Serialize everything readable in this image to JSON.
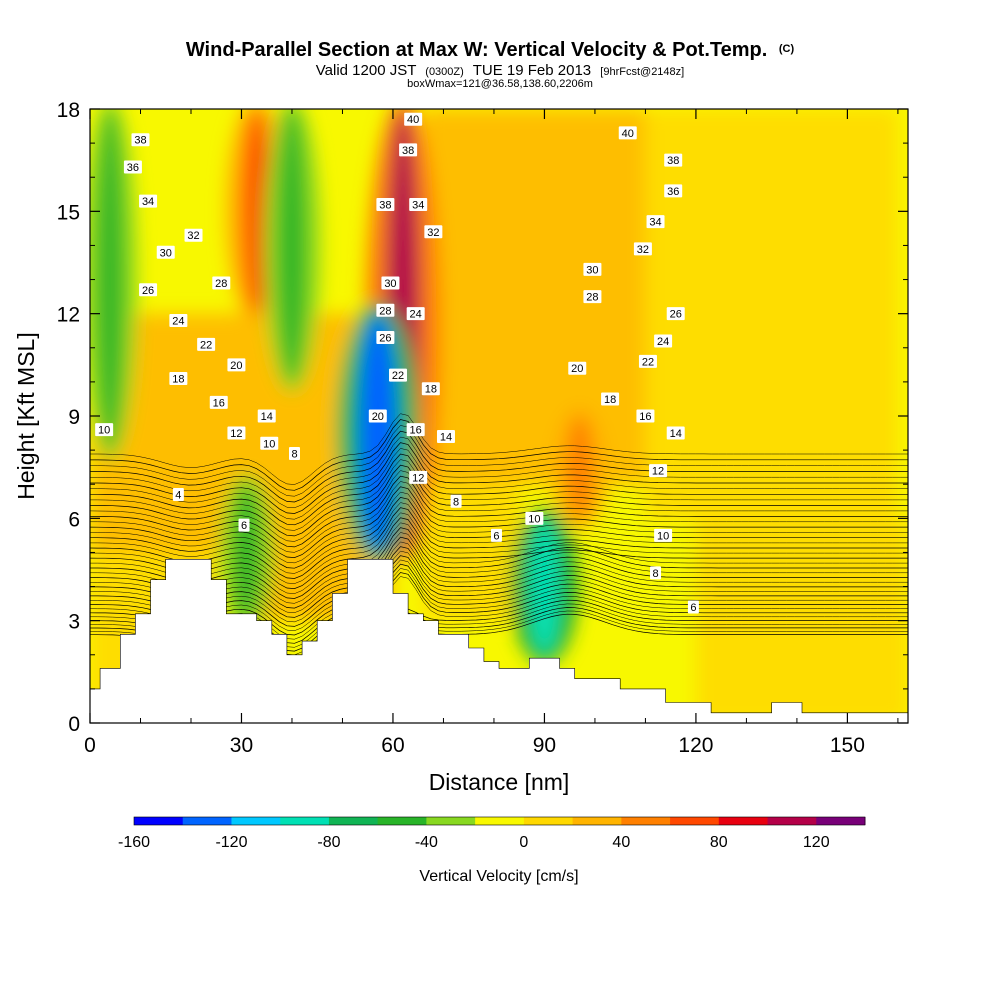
{
  "title": {
    "main": "Wind-Parallel Section at Max W: Vertical Velocity & Pot.Temp.",
    "mark": "(C)",
    "line2_a": "Valid 1200 JST",
    "line2_b": "(0300Z)",
    "line2_c": "TUE 19 Feb 2013",
    "line2_d": "[9hrFcst@2148z]",
    "line3": "boxWmax=121@36.58,138.60,2206m"
  },
  "chart_data": {
    "type": "heatmap",
    "xlabel": "Distance [nm]",
    "ylabel": "Height [Kft MSL]",
    "xlim": [
      0,
      162
    ],
    "ylim": [
      0,
      18
    ],
    "x_ticks": [
      0,
      30,
      60,
      90,
      120,
      150
    ],
    "y_ticks": [
      0,
      3,
      6,
      9,
      12,
      15,
      18
    ],
    "colorbar": {
      "label": "Vertical Velocity [cm/s]",
      "bounds": [
        -160,
        140
      ],
      "tick_values": [
        -160,
        -120,
        -80,
        -40,
        0,
        40,
        80,
        120
      ],
      "colors": [
        "#0000ff",
        "#0064ff",
        "#00c8ff",
        "#00e0b4",
        "#10b454",
        "#28b428",
        "#88d820",
        "#f8f800",
        "#ffd800",
        "#ffb400",
        "#ff8000",
        "#ff4800",
        "#e80010",
        "#b40048",
        "#780078"
      ]
    },
    "velocity_features": [
      {
        "x": 62,
        "z_bottom": 5,
        "z_top": 18,
        "w": 110
      },
      {
        "x": 33,
        "z_bottom": 12,
        "z_top": 18,
        "w": 70
      },
      {
        "x": 57,
        "z_bottom": 5,
        "z_top": 12,
        "w": -130
      },
      {
        "x": 90,
        "z_bottom": 2,
        "z_top": 6,
        "w": -90
      },
      {
        "x": 40,
        "z_bottom": 10,
        "z_top": 18,
        "w": -55
      },
      {
        "x": 4,
        "z_bottom": 8,
        "z_top": 18,
        "w": -45
      },
      {
        "x": 31,
        "z_bottom": 3,
        "z_top": 7,
        "w": -45
      },
      {
        "x": 97,
        "z_bottom": 6,
        "z_top": 9,
        "w": 55
      }
    ],
    "terrain_kft": [
      [
        0,
        1.0
      ],
      [
        2,
        1.0
      ],
      [
        2,
        1.6
      ],
      [
        6,
        1.6
      ],
      [
        6,
        2.6
      ],
      [
        9,
        2.6
      ],
      [
        9,
        3.2
      ],
      [
        12,
        3.2
      ],
      [
        12,
        4.2
      ],
      [
        15,
        4.2
      ],
      [
        15,
        4.8
      ],
      [
        24,
        4.8
      ],
      [
        24,
        4.2
      ],
      [
        27,
        4.2
      ],
      [
        27,
        3.2
      ],
      [
        33,
        3.2
      ],
      [
        33,
        3.0
      ],
      [
        36,
        3.0
      ],
      [
        36,
        2.6
      ],
      [
        39,
        2.6
      ],
      [
        39,
        2.0
      ],
      [
        42,
        2.0
      ],
      [
        42,
        2.4
      ],
      [
        45,
        2.4
      ],
      [
        45,
        3.0
      ],
      [
        48,
        3.0
      ],
      [
        48,
        3.8
      ],
      [
        51,
        3.8
      ],
      [
        51,
        4.8
      ],
      [
        60,
        4.8
      ],
      [
        60,
        3.8
      ],
      [
        63,
        3.8
      ],
      [
        63,
        3.2
      ],
      [
        66,
        3.2
      ],
      [
        66,
        3.0
      ],
      [
        69,
        3.0
      ],
      [
        69,
        2.6
      ],
      [
        75,
        2.6
      ],
      [
        75,
        2.2
      ],
      [
        78,
        2.2
      ],
      [
        78,
        1.8
      ],
      [
        81,
        1.8
      ],
      [
        81,
        1.6
      ],
      [
        87,
        1.6
      ],
      [
        87,
        1.9
      ],
      [
        93,
        1.9
      ],
      [
        93,
        1.6
      ],
      [
        96,
        1.6
      ],
      [
        96,
        1.3
      ],
      [
        105,
        1.3
      ],
      [
        105,
        1.0
      ],
      [
        114,
        1.0
      ],
      [
        114,
        0.6
      ],
      [
        123,
        0.6
      ],
      [
        123,
        0.3
      ],
      [
        135,
        0.3
      ],
      [
        135,
        0.6
      ],
      [
        141,
        0.6
      ],
      [
        141,
        0.3
      ],
      [
        162,
        0.3
      ]
    ],
    "theta_contours": [
      {
        "label": "4",
        "theta": 4
      },
      {
        "label": "6",
        "theta": 6
      },
      {
        "label": "8",
        "theta": 8
      },
      {
        "label": "10",
        "theta": 10
      },
      {
        "label": "12",
        "theta": 12
      },
      {
        "label": "14",
        "theta": 14
      },
      {
        "label": "16",
        "theta": 16
      },
      {
        "label": "18",
        "theta": 18
      },
      {
        "label": "20",
        "theta": 20
      },
      {
        "label": "22",
        "theta": 22
      },
      {
        "label": "24",
        "theta": 24
      },
      {
        "label": "26",
        "theta": 26
      },
      {
        "label": "28",
        "theta": 28
      },
      {
        "label": "30",
        "theta": 30
      },
      {
        "label": "32",
        "theta": 32
      },
      {
        "label": "34",
        "theta": 34
      },
      {
        "label": "36",
        "theta": 36
      },
      {
        "label": "38",
        "theta": 38
      },
      {
        "label": "40",
        "theta": 40
      }
    ],
    "contour_labels": [
      {
        "t": "38",
        "x": 10,
        "z": 17.1
      },
      {
        "t": "36",
        "x": 8.5,
        "z": 16.3
      },
      {
        "t": "34",
        "x": 11.5,
        "z": 15.3
      },
      {
        "t": "32",
        "x": 20.5,
        "z": 14.3
      },
      {
        "t": "30",
        "x": 15,
        "z": 13.8
      },
      {
        "t": "28",
        "x": 26,
        "z": 12.9
      },
      {
        "t": "26",
        "x": 11.5,
        "z": 12.7
      },
      {
        "t": "24",
        "x": 17.5,
        "z": 11.8
      },
      {
        "t": "22",
        "x": 23,
        "z": 11.1
      },
      {
        "t": "20",
        "x": 29,
        "z": 10.5
      },
      {
        "t": "18",
        "x": 17.5,
        "z": 10.1
      },
      {
        "t": "16",
        "x": 25.5,
        "z": 9.4
      },
      {
        "t": "14",
        "x": 35,
        "z": 9.0
      },
      {
        "t": "12",
        "x": 29,
        "z": 8.5
      },
      {
        "t": "10",
        "x": 2.8,
        "z": 8.6
      },
      {
        "t": "10",
        "x": 35.5,
        "z": 8.2
      },
      {
        "t": "8",
        "x": 40.5,
        "z": 7.9
      },
      {
        "t": "6",
        "x": 30.5,
        "z": 5.8
      },
      {
        "t": "4",
        "x": 17.5,
        "z": 6.7
      },
      {
        "t": "40",
        "x": 64,
        "z": 17.7
      },
      {
        "t": "38",
        "x": 63,
        "z": 16.8
      },
      {
        "t": "38",
        "x": 58.5,
        "z": 15.2
      },
      {
        "t": "34",
        "x": 65,
        "z": 15.2
      },
      {
        "t": "32",
        "x": 68,
        "z": 14.4
      },
      {
        "t": "30",
        "x": 59.5,
        "z": 12.9
      },
      {
        "t": "28",
        "x": 58.5,
        "z": 12.1
      },
      {
        "t": "24",
        "x": 64.5,
        "z": 12.0
      },
      {
        "t": "26",
        "x": 58.5,
        "z": 11.3
      },
      {
        "t": "22",
        "x": 61,
        "z": 10.2
      },
      {
        "t": "18",
        "x": 67.5,
        "z": 9.8
      },
      {
        "t": "20",
        "x": 57,
        "z": 9.0
      },
      {
        "t": "16",
        "x": 64.5,
        "z": 8.6
      },
      {
        "t": "14",
        "x": 70.5,
        "z": 8.4
      },
      {
        "t": "12",
        "x": 65,
        "z": 7.2
      },
      {
        "t": "8",
        "x": 72.5,
        "z": 6.5
      },
      {
        "t": "6",
        "x": 80.5,
        "z": 5.5
      },
      {
        "t": "10",
        "x": 88,
        "z": 6.0
      },
      {
        "t": "40",
        "x": 106.5,
        "z": 17.3
      },
      {
        "t": "38",
        "x": 115.5,
        "z": 16.5
      },
      {
        "t": "36",
        "x": 115.5,
        "z": 15.6
      },
      {
        "t": "34",
        "x": 112,
        "z": 14.7
      },
      {
        "t": "32",
        "x": 109.5,
        "z": 13.9
      },
      {
        "t": "30",
        "x": 99.5,
        "z": 13.3
      },
      {
        "t": "28",
        "x": 99.5,
        "z": 12.5
      },
      {
        "t": "26",
        "x": 116,
        "z": 12.0
      },
      {
        "t": "24",
        "x": 113.5,
        "z": 11.2
      },
      {
        "t": "22",
        "x": 110.5,
        "z": 10.6
      },
      {
        "t": "20",
        "x": 96.5,
        "z": 10.4
      },
      {
        "t": "18",
        "x": 103,
        "z": 9.5
      },
      {
        "t": "16",
        "x": 110,
        "z": 9.0
      },
      {
        "t": "14",
        "x": 116,
        "z": 8.5
      },
      {
        "t": "12",
        "x": 112.5,
        "z": 7.4
      },
      {
        "t": "10",
        "x": 113.5,
        "z": 5.5
      },
      {
        "t": "8",
        "x": 112,
        "z": 4.4
      },
      {
        "t": "6",
        "x": 119.5,
        "z": 3.4
      }
    ]
  }
}
